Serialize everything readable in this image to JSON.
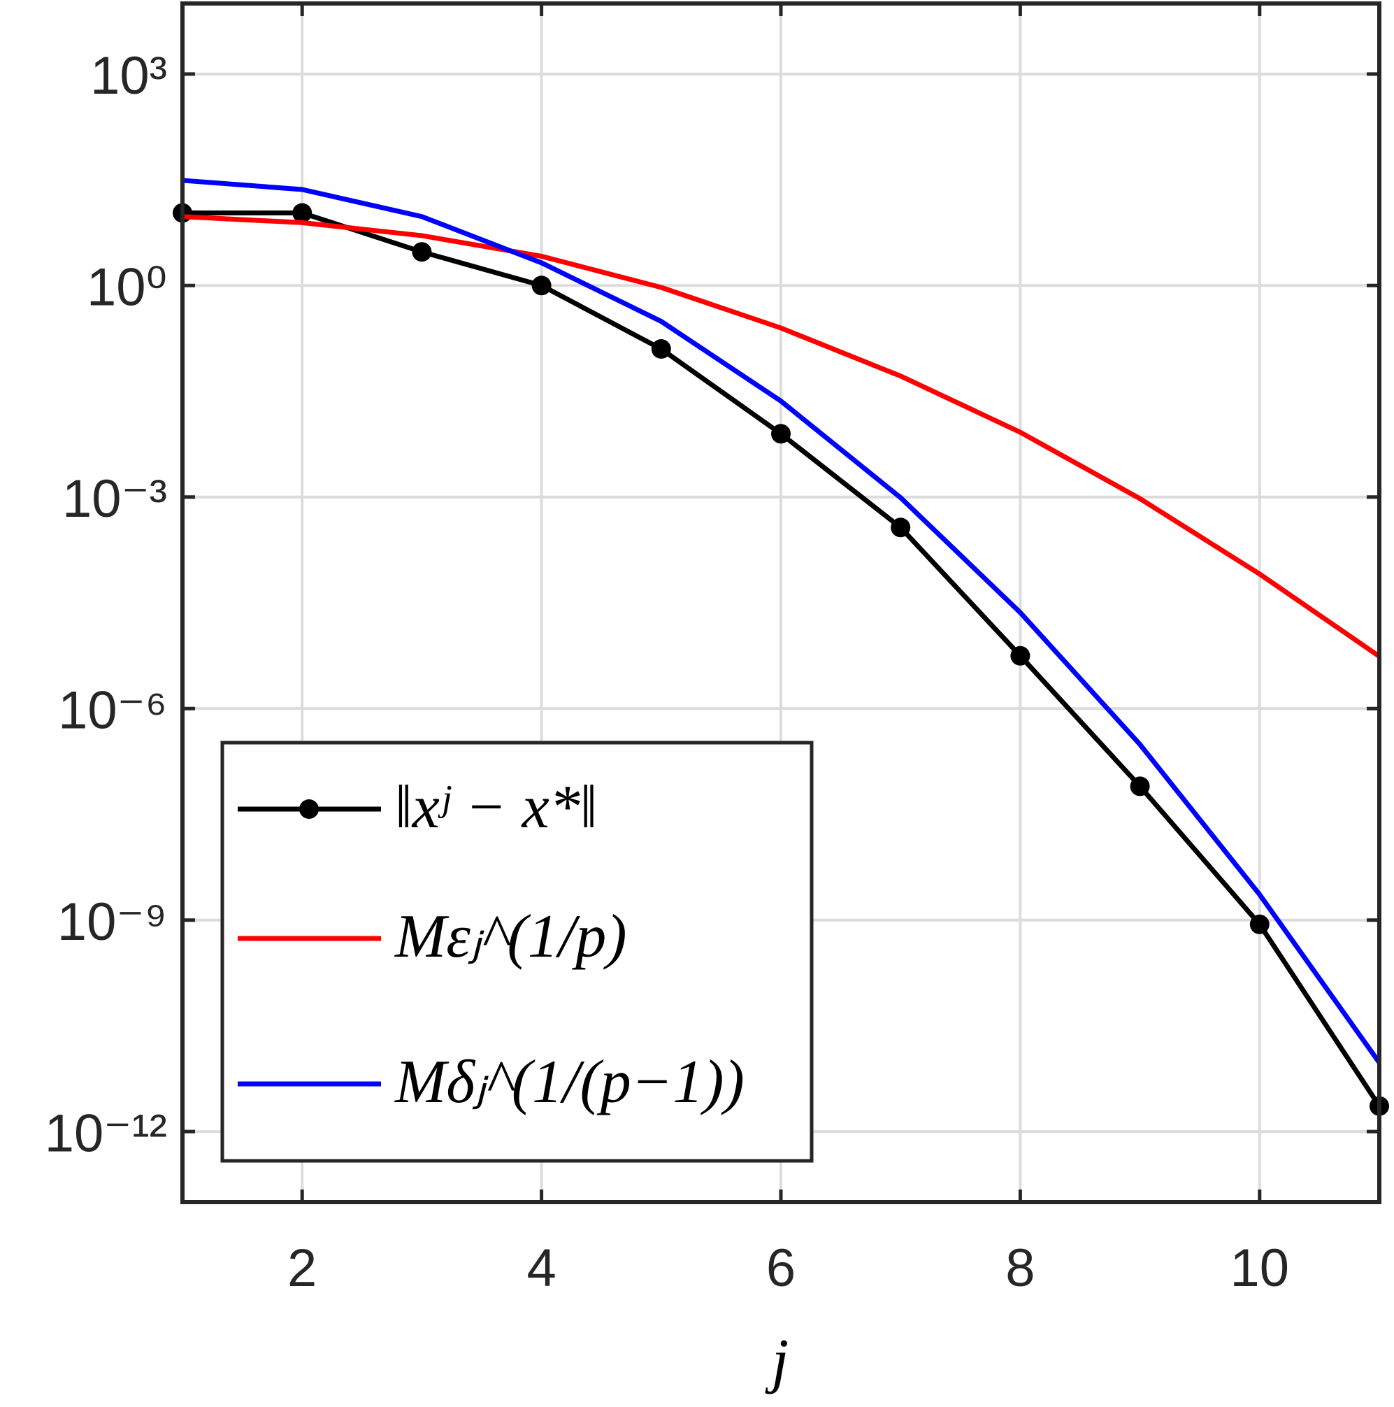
{
  "chart_data": {
    "type": "line",
    "xlabel": "j",
    "x": [
      1,
      2,
      3,
      4,
      5,
      6,
      7,
      8,
      9,
      10,
      11
    ],
    "series": [
      {
        "name": "‖xʲ − x*‖",
        "color": "#000000",
        "marker": "circle",
        "values": [
          10.7,
          10.7,
          3.0,
          1.0,
          0.126,
          0.0079,
          0.00037,
          5.6e-06,
          7.9e-08,
          8.7e-10,
          2.3e-12
        ]
      },
      {
        "name": "Mεⱼ^(1/p)",
        "color": "#ff0000",
        "values": [
          9.5,
          7.8,
          5.1,
          2.6,
          0.94,
          0.25,
          0.052,
          0.0083,
          0.00095,
          8.1e-05,
          5.5e-06
        ]
      },
      {
        "name": "Mδⱼ^(1/(p−1))",
        "color": "#0000ff",
        "values": [
          31,
          23,
          9.5,
          2.1,
          0.31,
          0.023,
          0.00098,
          2.3e-05,
          3.1e-07,
          2.3e-09,
          9.5e-12
        ]
      }
    ],
    "xlim": [
      1,
      11
    ],
    "xticks": [
      2,
      4,
      6,
      8,
      10
    ],
    "ylim": [
      1e-13,
      10000
    ],
    "ylog": true,
    "yticks": [
      {
        "value": 1000,
        "label": "10³"
      },
      {
        "value": 1,
        "label": "10⁰"
      },
      {
        "value": 0.001,
        "label": "10⁻³"
      },
      {
        "value": 1e-06,
        "label": "10⁻⁶"
      },
      {
        "value": 1e-09,
        "label": "10⁻⁹"
      },
      {
        "value": 1e-12,
        "label": "10⁻¹²"
      }
    ],
    "grid": true,
    "legend": "lower left"
  }
}
